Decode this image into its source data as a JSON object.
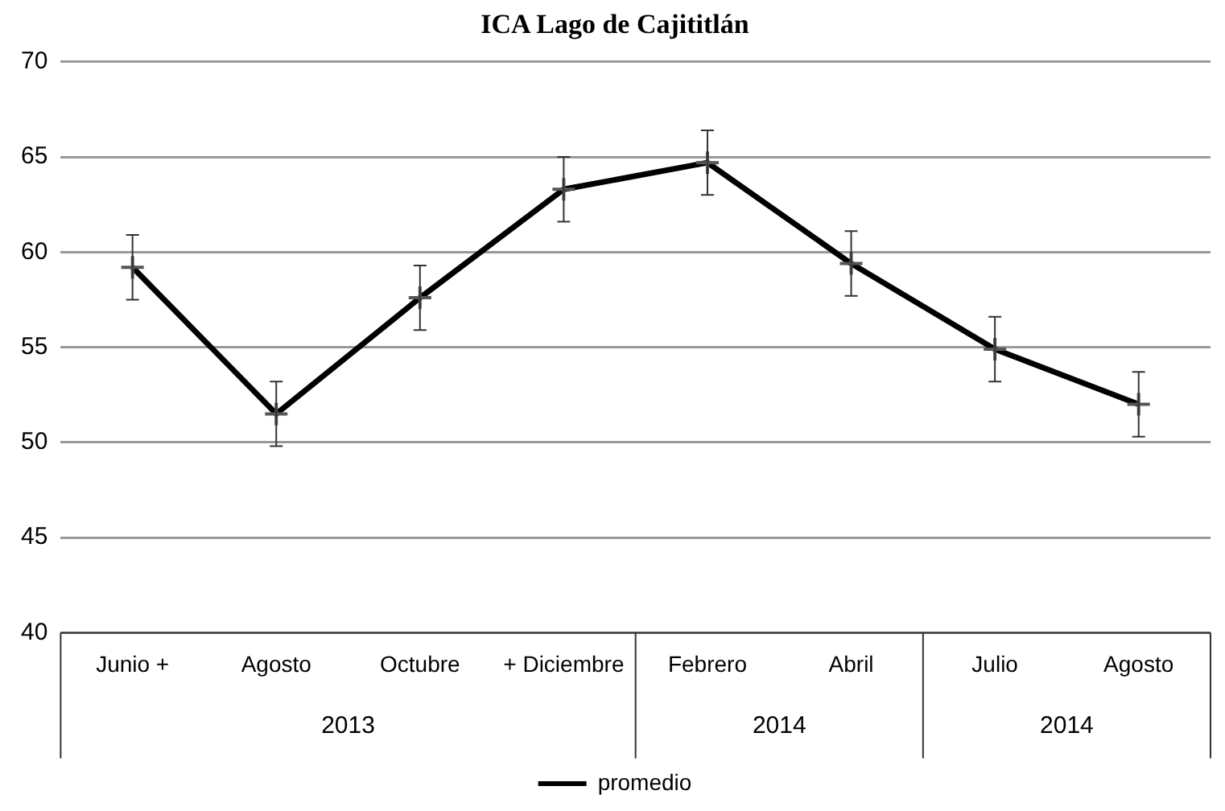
{
  "chart_data": {
    "type": "line",
    "title": "ICA Lago de Cajititlán",
    "categories": [
      "Junio +",
      "Agosto",
      "Octubre",
      "+ Diciembre",
      "Febrero",
      "Abril",
      "Julio",
      "Agosto"
    ],
    "series": [
      {
        "name": "promedio",
        "color": "#000000",
        "values": [
          59.2,
          51.5,
          57.6,
          63.3,
          64.7,
          59.4,
          54.9,
          52.0
        ],
        "errors": [
          1.7,
          1.7,
          1.7,
          1.7,
          1.7,
          1.7,
          1.7,
          1.7
        ]
      }
    ],
    "annotations": [
      "2013",
      "2014",
      "2014"
    ],
    "ylim": [
      40,
      70
    ],
    "yticks": [
      40,
      45,
      50,
      55,
      60,
      65,
      70
    ],
    "grid": "y",
    "legend": "bottom",
    "marker": "cross"
  }
}
